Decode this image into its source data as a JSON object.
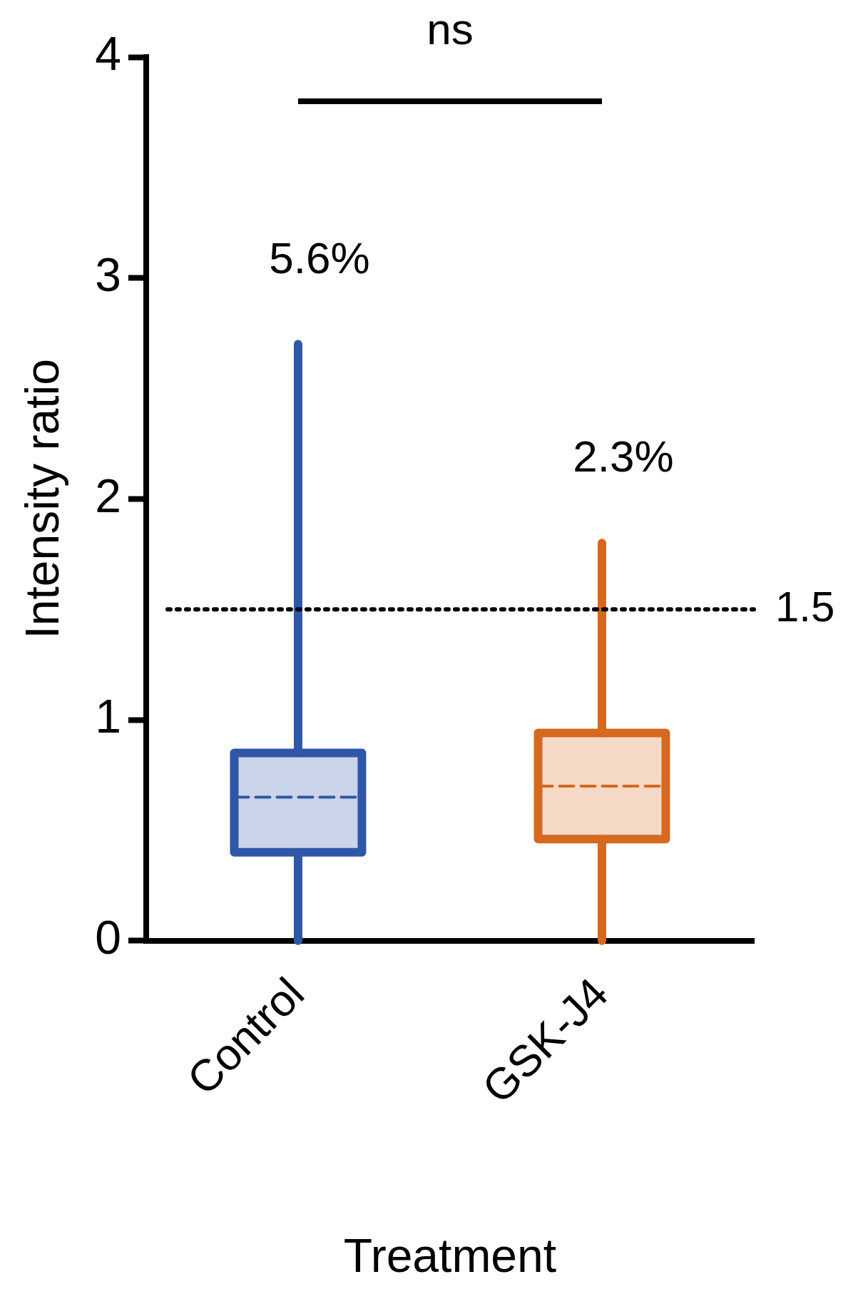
{
  "chart_data": {
    "type": "box",
    "xlabel": "Treatment",
    "ylabel": "Intensity ratio",
    "categories": [
      "Control",
      "GSK-J4"
    ],
    "series": [
      {
        "color": "#2f57a8",
        "boxes": [
          {
            "low": 0,
            "q1": 0.4,
            "median": 0.65,
            "q3": 0.85,
            "high": 2.7
          },
          null
        ]
      },
      {
        "color": "#d4691f",
        "boxes": [
          null,
          {
            "low": 0,
            "q1": 0.46,
            "median": 0.7,
            "q3": 0.94,
            "high": 1.8
          }
        ]
      }
    ],
    "ylim": [
      0,
      4
    ],
    "yticks": [
      0,
      1,
      2,
      3,
      4
    ],
    "grid": false,
    "legend": false,
    "ref_lines": [
      {
        "axis": "y",
        "value": 1.5,
        "label": "1.5",
        "line_style": "dotted"
      }
    ],
    "annotations": [
      "ns",
      "5.6%",
      "2.3%"
    ]
  }
}
